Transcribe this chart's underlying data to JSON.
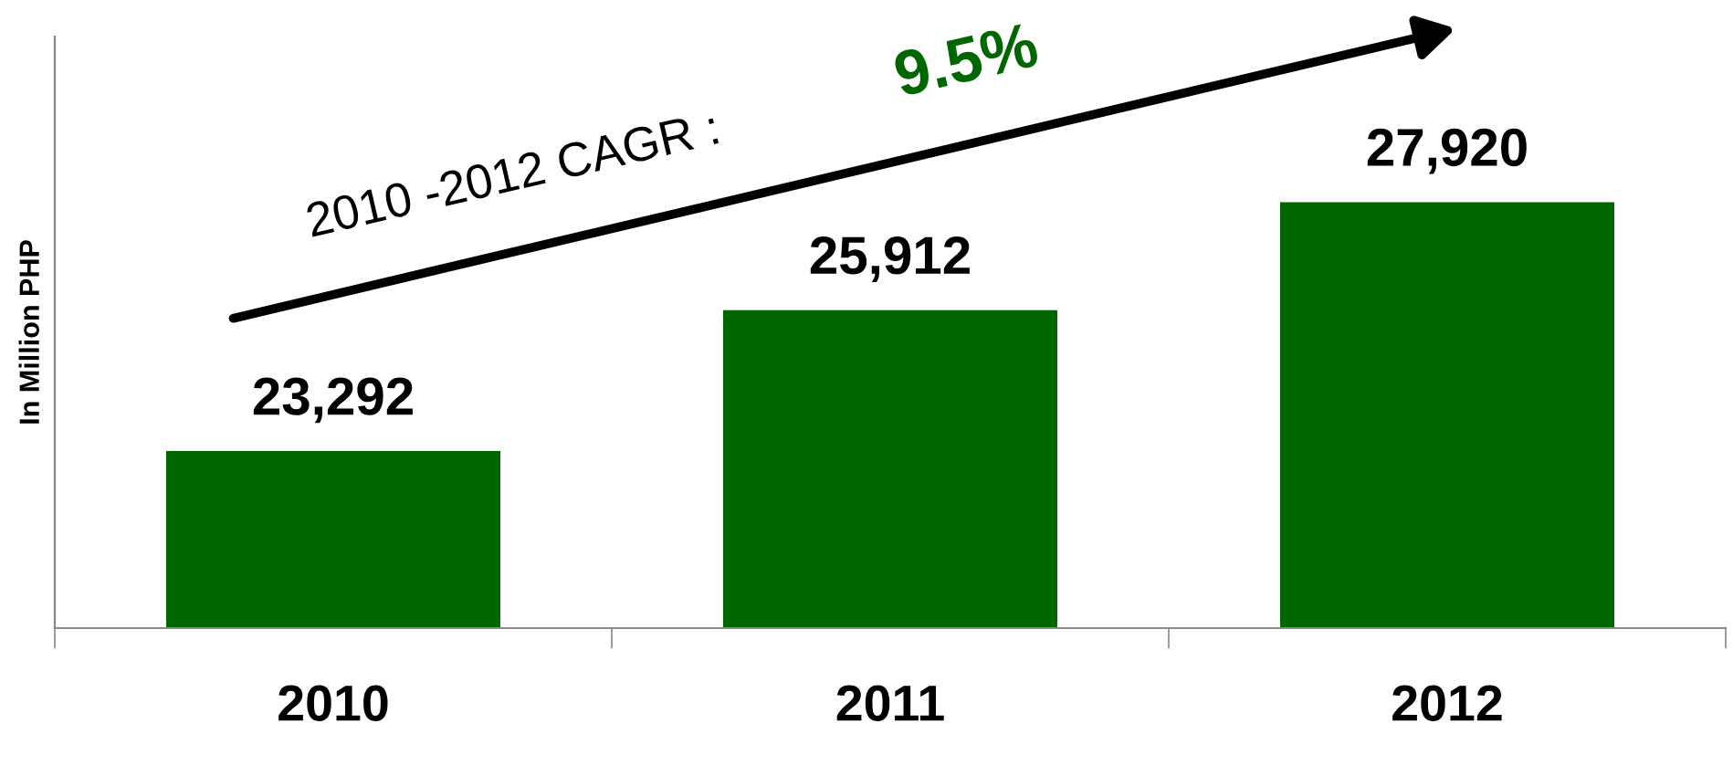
{
  "chart_data": {
    "type": "bar",
    "ylabel": "In Million PHP",
    "categories": [
      "2010",
      "2011",
      "2012"
    ],
    "values": [
      23292,
      25912,
      27920
    ],
    "value_labels": [
      "23,292",
      "25,912",
      "27,920"
    ],
    "color": "#006600",
    "ylim": [
      20000,
      31000
    ],
    "tick_labels": "x",
    "grid": false,
    "annotations": [
      "2010 -2012 CAGR : ",
      "9.5%"
    ]
  }
}
